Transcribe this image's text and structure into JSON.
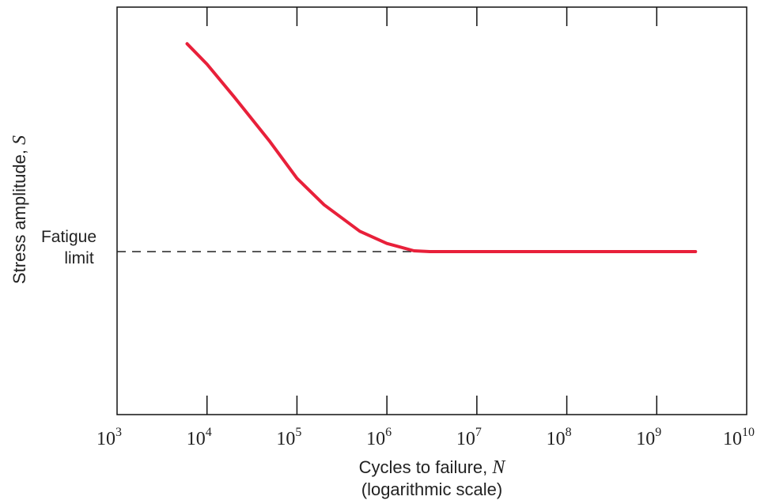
{
  "chart_data": {
    "type": "line",
    "x_scale": "log",
    "xlim": [
      1000,
      10000000000
    ],
    "x_ticks": [
      {
        "base": "10",
        "exp": "3"
      },
      {
        "base": "10",
        "exp": "4"
      },
      {
        "base": "10",
        "exp": "5"
      },
      {
        "base": "10",
        "exp": "6"
      },
      {
        "base": "10",
        "exp": "7"
      },
      {
        "base": "10",
        "exp": "8"
      },
      {
        "base": "10",
        "exp": "9"
      },
      {
        "base": "10",
        "exp": "10"
      }
    ],
    "xlabel": "Cycles to failure, ",
    "xlabel_var": "N",
    "xlabel_sub": "(logarithmic scale)",
    "ylabel": "Stress amplitude, ",
    "ylabel_var": "S",
    "ylim": [
      0,
      1
    ],
    "annotation": {
      "line1": "Fatigue",
      "line2": "limit",
      "y": 0.4
    },
    "grid": false,
    "series": [
      {
        "color": "#e8203a",
        "x": [
          6000,
          10000,
          20000,
          50000,
          100000,
          200000,
          500000,
          1000000,
          2000000,
          3000000,
          10000000,
          100000000,
          1000000000,
          2700000000
        ],
        "y": [
          0.91,
          0.86,
          0.78,
          0.67,
          0.58,
          0.515,
          0.45,
          0.42,
          0.402,
          0.4,
          0.4,
          0.4,
          0.4,
          0.4
        ]
      }
    ],
    "reference_line": {
      "y": 0.4,
      "x_from": 1000,
      "x_to": 3000000,
      "style": "dashed"
    }
  }
}
